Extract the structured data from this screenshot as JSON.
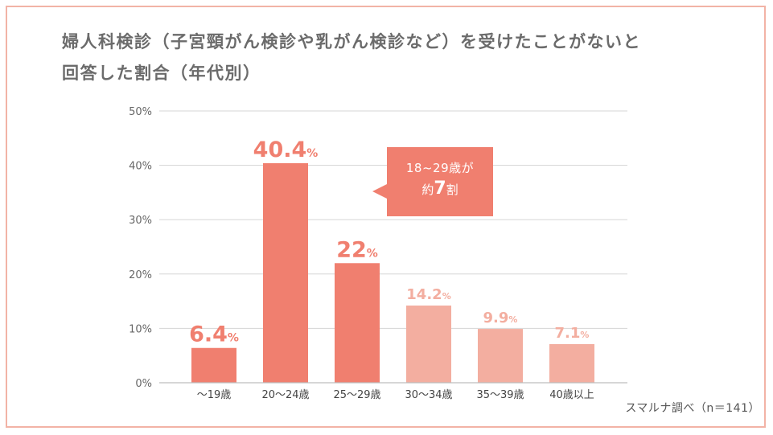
{
  "header": {
    "title_line1": "婦人科検診（子宮頸がん検診や乳がん検診など）を受けたことがないと",
    "title_line2": "回答した割合（年代別）"
  },
  "callout": {
    "line1": "18~29歳が",
    "prefix": "約",
    "number": "7",
    "suffix": "割",
    "color": "#f07f6f"
  },
  "source": "スマルナ調べ（n＝141）",
  "colors": {
    "highlight": "#f07f6f",
    "muted": "#f3aea0",
    "grid": "#d5d5d5",
    "axis_text": "#666666"
  },
  "chart_data": {
    "type": "bar",
    "categories": [
      "〜19歳",
      "20〜24歳",
      "25〜29歳",
      "30〜34歳",
      "35〜39歳",
      "40歳以上"
    ],
    "values": [
      6.4,
      40.4,
      22,
      14.2,
      9.9,
      7.1
    ],
    "value_labels": [
      "6.4",
      "40.4",
      "22",
      "14.2",
      "9.9",
      "7.1"
    ],
    "unit": "%",
    "highlighted": [
      true,
      true,
      true,
      false,
      false,
      false
    ],
    "ylim": [
      0,
      50
    ],
    "yticks": [
      0,
      10,
      20,
      30,
      40,
      50
    ],
    "ytick_labels": [
      "0%",
      "10%",
      "20%",
      "30%",
      "40%",
      "50%"
    ],
    "grid": true,
    "title": "婦人科検診（子宮頸がん検診や乳がん検診など）を受けたことがないと回答した割合（年代別）"
  }
}
